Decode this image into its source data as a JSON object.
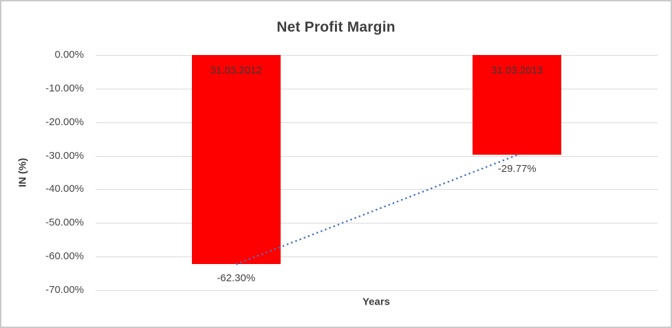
{
  "chart_data": {
    "type": "bar",
    "title": "Net Profit Margin",
    "xlabel": "Years",
    "ylabel": "IN (%)",
    "categories": [
      "31.03.2012",
      "31.03.2013"
    ],
    "values": [
      -62.3,
      -29.77
    ],
    "data_labels": [
      "-62.30%",
      "-29.77%"
    ],
    "ylim": [
      -70,
      0
    ],
    "y_ticks": [
      {
        "value": 0,
        "label": "0.00%"
      },
      {
        "value": -10,
        "label": "-10.00%"
      },
      {
        "value": -20,
        "label": "-20.00%"
      },
      {
        "value": -30,
        "label": "-30.00%"
      },
      {
        "value": -40,
        "label": "-40.00%"
      },
      {
        "value": -50,
        "label": "-50.00%"
      },
      {
        "value": -60,
        "label": "-60.00%"
      },
      {
        "value": -70,
        "label": "-70.00%"
      }
    ],
    "grid": true,
    "legend": "none",
    "bar_color": "#FF0000",
    "trendline": {
      "type": "linear",
      "style": "dotted",
      "color": "#4472C4",
      "points": [
        -62.3,
        -29.77
      ]
    }
  },
  "colors": {
    "background": "#ffffff",
    "border": "#c9c9c9",
    "gridline": "#d9d9d9",
    "title_text": "#3f3f3f",
    "axis_text": "#474747",
    "label_text": "#404040",
    "bar": "#FF0000",
    "trendline": "#4472C4"
  }
}
